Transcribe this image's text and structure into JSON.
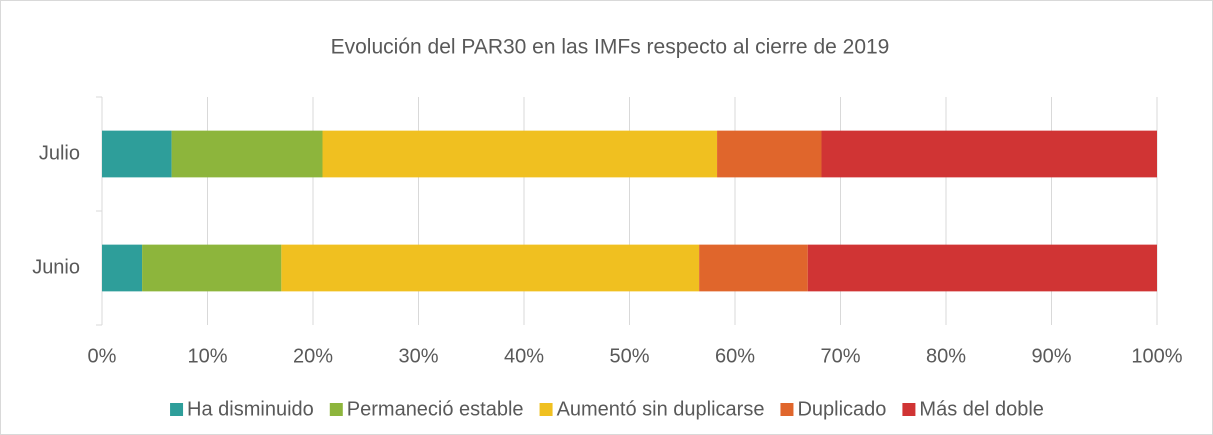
{
  "chart_data": {
    "type": "stacked-bar-horizontal",
    "title": "Evolución del PAR30 en las IMFs respecto al cierre de 2019",
    "categories": [
      "Julio",
      "Junio"
    ],
    "series": [
      {
        "name": "Ha disminuido",
        "color": "#2e9e9a",
        "values": [
          6.6,
          3.8
        ]
      },
      {
        "name": "Permaneció estable",
        "color": "#8db53c",
        "values": [
          14.3,
          13.2
        ]
      },
      {
        "name": "Aumentó sin duplicarse",
        "color": "#f0c020",
        "values": [
          37.4,
          39.6
        ]
      },
      {
        "name": "Duplicado",
        "color": "#e0662c",
        "values": [
          9.9,
          10.3
        ]
      },
      {
        "name": "Más del doble",
        "color": "#d03434",
        "values": [
          31.8,
          33.1
        ]
      }
    ],
    "xlim": [
      0,
      100
    ],
    "xticks": [
      {
        "value": 0,
        "label": "0%"
      },
      {
        "value": 10,
        "label": "10%"
      },
      {
        "value": 20,
        "label": "20%"
      },
      {
        "value": 30,
        "label": "30%"
      },
      {
        "value": 40,
        "label": "40%"
      },
      {
        "value": 50,
        "label": "50%"
      },
      {
        "value": 60,
        "label": "60%"
      },
      {
        "value": 70,
        "label": "70%"
      },
      {
        "value": 80,
        "label": "80%"
      },
      {
        "value": 90,
        "label": "90%"
      },
      {
        "value": 100,
        "label": "100%"
      }
    ],
    "grid": true,
    "legend": "bottom"
  }
}
